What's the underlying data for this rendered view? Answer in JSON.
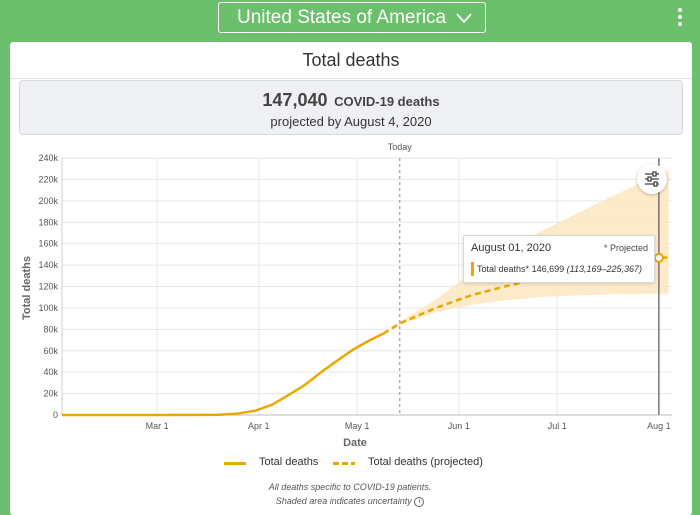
{
  "header": {
    "country_select": "United States of America",
    "menu_icon": "kebab-menu-icon"
  },
  "card": {
    "title": "Total deaths",
    "summary": {
      "value": "147,040",
      "value_label": "COVID-19 deaths",
      "projection_text": "projected by August 4, 2020"
    }
  },
  "chart_data": {
    "type": "line",
    "title": "",
    "xlabel": "Date",
    "ylabel": "Total deaths",
    "x_tick_labels": [
      "Mar 1",
      "Apr 1",
      "May 1",
      "Jun 1",
      "Jul 1",
      "Aug 1"
    ],
    "y_tick_labels": [
      "0",
      "20k",
      "40k",
      "60k",
      "80k",
      "100k",
      "120k",
      "140k",
      "160k",
      "180k",
      "200k",
      "220k",
      "240k"
    ],
    "ylim": [
      0,
      240000
    ],
    "xlim": [
      "2020-02-01",
      "2020-08-05"
    ],
    "grid": true,
    "today_marker": {
      "label": "Today",
      "date": "2020-05-14"
    },
    "series": [
      {
        "name": "Total deaths",
        "style": "solid",
        "color": "#e8a800",
        "points": [
          [
            "2020-02-01",
            0
          ],
          [
            "2020-03-01",
            0
          ],
          [
            "2020-03-15",
            60
          ],
          [
            "2020-03-20",
            300
          ],
          [
            "2020-03-25",
            1100
          ],
          [
            "2020-03-31",
            4000
          ],
          [
            "2020-04-05",
            9500
          ],
          [
            "2020-04-10",
            18500
          ],
          [
            "2020-04-15",
            28000
          ],
          [
            "2020-04-20",
            40000
          ],
          [
            "2020-04-25",
            51000
          ],
          [
            "2020-04-30",
            61500
          ],
          [
            "2020-05-05",
            70000
          ],
          [
            "2020-05-09",
            76000
          ]
        ]
      },
      {
        "name": "Total deaths (projected)",
        "style": "dashed",
        "color": "#e8a800",
        "points": [
          [
            "2020-05-09",
            76000
          ],
          [
            "2020-05-14",
            85500
          ],
          [
            "2020-05-25",
            100000
          ],
          [
            "2020-06-05",
            112000
          ],
          [
            "2020-06-15",
            120000
          ],
          [
            "2020-06-25",
            127000
          ],
          [
            "2020-07-05",
            133500
          ],
          [
            "2020-07-15",
            139000
          ],
          [
            "2020-07-25",
            143500
          ],
          [
            "2020-08-01",
            146699
          ],
          [
            "2020-08-04",
            147040
          ]
        ]
      }
    ],
    "uncertainty_band": {
      "color": "#fde6bf",
      "points": [
        [
          "2020-05-09",
          76000,
          76000
        ],
        [
          "2020-05-14",
          84000,
          87000
        ],
        [
          "2020-05-25",
          96000,
          108000
        ],
        [
          "2020-06-05",
          103000,
          133000
        ],
        [
          "2020-06-15",
          107000,
          152000
        ],
        [
          "2020-06-25",
          110000,
          170000
        ],
        [
          "2020-07-05",
          111500,
          185000
        ],
        [
          "2020-07-15",
          112500,
          200000
        ],
        [
          "2020-07-25",
          113000,
          215000
        ],
        [
          "2020-08-01",
          113169,
          225367
        ],
        [
          "2020-08-04",
          113300,
          228000
        ]
      ]
    },
    "hover": {
      "date": "2020-08-01",
      "date_label": "August 01, 2020",
      "projected_label": "* Projected",
      "series_label": "Total deaths*",
      "value": "146,699",
      "range": "(113,169–225,367)"
    },
    "legend": [
      {
        "label": "Total deaths",
        "style": "solid"
      },
      {
        "label": "Total deaths (projected)",
        "style": "dashed"
      }
    ]
  },
  "notes": {
    "line1": "All deaths specific to COVID-19 patients.",
    "line2": "Shaded area indicates uncertainty",
    "info_icon": "info-icon"
  },
  "icons": {
    "filter": "filter-settings-icon",
    "chevron": "chevron-down-icon"
  }
}
